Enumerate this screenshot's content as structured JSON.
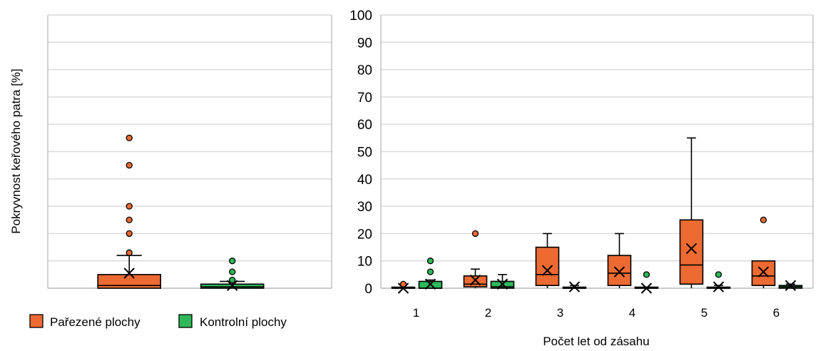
{
  "chart_data": [
    {
      "type": "box",
      "panel": "overall",
      "ylabel": "Pokryvnost keřového patra [%]",
      "ylim": [
        0,
        100
      ],
      "grid": true,
      "tick_labels_shown": false,
      "series": [
        {
          "name": "Pařezené plochy",
          "min": 0,
          "q1": 0,
          "median": 1,
          "q3": 5,
          "max": 12,
          "mean": 5.5,
          "outliers": [
            13,
            20,
            25,
            30,
            45,
            55
          ]
        },
        {
          "name": "Kontrolní plochy",
          "min": 0,
          "q1": 0,
          "median": 0.5,
          "q3": 1.5,
          "max": 2.5,
          "mean": 1,
          "outliers": [
            3,
            6,
            10
          ]
        }
      ]
    },
    {
      "type": "box",
      "panel": "by_year",
      "xlabel": "Počet let od zásahu",
      "ylim": [
        0,
        100
      ],
      "yticks": [
        "0",
        "10",
        "20",
        "30",
        "40",
        "50",
        "60",
        "70",
        "80",
        "90",
        "100"
      ],
      "grid": true,
      "categories": [
        "1",
        "2",
        "3",
        "4",
        "5",
        "6"
      ],
      "series": [
        {
          "name": "Pařezené plochy",
          "boxes": [
            {
              "min": 0,
              "q1": 0,
              "median": 0,
              "q3": 0,
              "max": 0,
              "mean": 0,
              "outliers": [
                1.5
              ]
            },
            {
              "min": 0,
              "q1": 0.5,
              "median": 1.5,
              "q3": 4.5,
              "max": 7,
              "mean": 3,
              "outliers": [
                20
              ]
            },
            {
              "min": 0,
              "q1": 1,
              "median": 5,
              "q3": 15,
              "max": 20,
              "mean": 6.5,
              "outliers": []
            },
            {
              "min": 0,
              "q1": 1,
              "median": 5.5,
              "q3": 12,
              "max": 20,
              "mean": 6,
              "outliers": []
            },
            {
              "min": 0,
              "q1": 1.5,
              "median": 8.5,
              "q3": 25,
              "max": 55,
              "mean": 14.5,
              "outliers": []
            },
            {
              "min": 0,
              "q1": 1,
              "median": 4.5,
              "q3": 10,
              "max": 10,
              "mean": 6,
              "outliers": [
                25
              ]
            }
          ]
        },
        {
          "name": "Kontrolní plochy",
          "boxes": [
            {
              "min": 0,
              "q1": 0,
              "median": 0,
              "q3": 2.5,
              "max": 3,
              "mean": 1.5,
              "outliers": [
                6,
                10
              ]
            },
            {
              "min": 0,
              "q1": 0,
              "median": 0.5,
              "q3": 2.5,
              "max": 5,
              "mean": 1.5,
              "outliers": []
            },
            {
              "min": 0,
              "q1": 0,
              "median": 0,
              "q3": 0,
              "max": 1,
              "mean": 0.5,
              "outliers": []
            },
            {
              "min": 0,
              "q1": 0,
              "median": 0,
              "q3": 0,
              "max": 0,
              "mean": 0,
              "outliers": [
                5
              ]
            },
            {
              "min": 0,
              "q1": 0,
              "median": 0,
              "q3": 0,
              "max": 1,
              "mean": 0.5,
              "outliers": [
                5
              ]
            },
            {
              "min": 0,
              "q1": 0,
              "median": 0.5,
              "q3": 1,
              "max": 1.5,
              "mean": 1,
              "outliers": []
            }
          ]
        }
      ]
    }
  ],
  "legend": {
    "position": "bottom-left",
    "items": [
      {
        "label": "Pařezené plochy",
        "color": "#ED6A32"
      },
      {
        "label": "Kontrolní plochy",
        "color": "#2DB85A"
      }
    ]
  },
  "colors": {
    "grid": "#d9d9d9",
    "axis": "#bfbfbf",
    "box_outline": "#000000"
  }
}
